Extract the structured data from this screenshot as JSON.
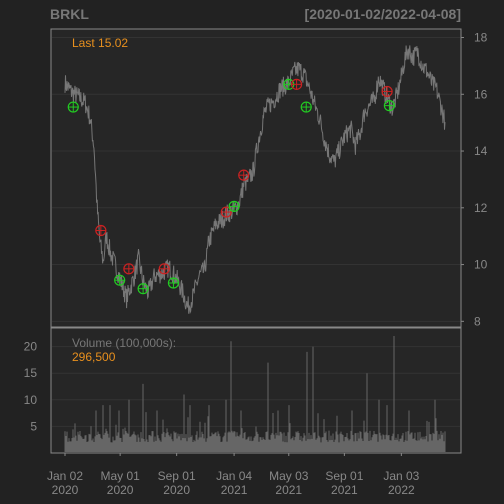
{
  "chart_data": {
    "type": "line",
    "title": "BRKL",
    "date_range": "[2020-01-02/2022-04-08]",
    "last_label": "Last 15.02",
    "volume_label": "Volume (100,000s):",
    "volume_value": "296,500",
    "price_axis": {
      "ticks": [
        "8",
        "10",
        "12",
        "14",
        "16",
        "18"
      ],
      "ylim": [
        7.8,
        18.3
      ]
    },
    "volume_axis": {
      "ticks": [
        "5",
        "10",
        "15",
        "20"
      ],
      "ylim": [
        0,
        23.5
      ]
    },
    "x_axis": {
      "dates": [
        "2020-01-02",
        "2022-04-08"
      ],
      "ticks": [
        {
          "date": "2020-01-02",
          "line1": "Jan 02",
          "line2": "2020"
        },
        {
          "date": "2020-05-01",
          "line1": "May 01",
          "line2": "2020"
        },
        {
          "date": "2020-09-01",
          "line1": "Sep 01",
          "line2": "2020"
        },
        {
          "date": "2021-01-04",
          "line1": "Jan 04",
          "line2": "2021"
        },
        {
          "date": "2021-05-03",
          "line1": "May 03",
          "line2": "2021"
        },
        {
          "date": "2021-09-01",
          "line1": "Sep 01",
          "line2": "2021"
        },
        {
          "date": "2022-01-03",
          "line1": "Jan 03",
          "line2": "2022"
        }
      ]
    },
    "price_series": {
      "name": "BRKL",
      "points": [
        [
          "2020-01-02",
          16.4
        ],
        [
          "2020-01-15",
          16.1
        ],
        [
          "2020-02-01",
          15.9
        ],
        [
          "2020-02-15",
          15.7
        ],
        [
          "2020-02-25",
          15.2
        ],
        [
          "2020-03-05",
          14.2
        ],
        [
          "2020-03-12",
          12.0
        ],
        [
          "2020-03-18",
          10.8
        ],
        [
          "2020-03-25",
          10.1
        ],
        [
          "2020-04-01",
          11.0
        ],
        [
          "2020-04-10",
          10.4
        ],
        [
          "2020-04-20",
          10.0
        ],
        [
          "2020-05-01",
          9.5
        ],
        [
          "2020-05-15",
          8.8
        ],
        [
          "2020-06-01",
          9.6
        ],
        [
          "2020-06-10",
          10.2
        ],
        [
          "2020-06-20",
          9.4
        ],
        [
          "2020-07-01",
          9.0
        ],
        [
          "2020-07-15",
          9.6
        ],
        [
          "2020-08-01",
          9.7
        ],
        [
          "2020-08-15",
          9.9
        ],
        [
          "2020-09-01",
          9.5
        ],
        [
          "2020-09-15",
          9.0
        ],
        [
          "2020-09-25",
          8.5
        ],
        [
          "2020-10-05",
          8.8
        ],
        [
          "2020-10-20",
          9.6
        ],
        [
          "2020-11-01",
          9.8
        ],
        [
          "2020-11-10",
          10.8
        ],
        [
          "2020-11-25",
          11.4
        ],
        [
          "2020-12-10",
          11.6
        ],
        [
          "2020-12-20",
          11.8
        ],
        [
          "2021-01-04",
          11.9
        ],
        [
          "2021-01-15",
          12.2
        ],
        [
          "2021-01-25",
          12.8
        ],
        [
          "2021-02-05",
          13.0
        ],
        [
          "2021-02-15",
          13.3
        ],
        [
          "2021-02-25",
          14.3
        ],
        [
          "2021-03-10",
          15.3
        ],
        [
          "2021-03-20",
          15.6
        ],
        [
          "2021-04-01",
          15.8
        ],
        [
          "2021-04-15",
          16.2
        ],
        [
          "2021-05-03",
          16.4
        ],
        [
          "2021-05-15",
          16.8
        ],
        [
          "2021-05-25",
          16.9
        ],
        [
          "2021-06-05",
          16.7
        ],
        [
          "2021-06-15",
          16.3
        ],
        [
          "2021-06-25",
          15.8
        ],
        [
          "2021-07-10",
          15.1
        ],
        [
          "2021-07-20",
          14.4
        ],
        [
          "2021-07-30",
          13.9
        ],
        [
          "2021-08-10",
          13.6
        ],
        [
          "2021-08-20",
          14.0
        ],
        [
          "2021-09-01",
          14.5
        ],
        [
          "2021-09-15",
          14.8
        ],
        [
          "2021-09-25",
          14.2
        ],
        [
          "2021-10-05",
          14.6
        ],
        [
          "2021-10-15",
          15.4
        ],
        [
          "2021-10-25",
          15.6
        ],
        [
          "2021-11-05",
          15.8
        ],
        [
          "2021-11-15",
          16.6
        ],
        [
          "2021-11-25",
          16.2
        ],
        [
          "2021-12-05",
          15.8
        ],
        [
          "2021-12-15",
          15.5
        ],
        [
          "2021-12-25",
          16.0
        ],
        [
          "2022-01-03",
          16.6
        ],
        [
          "2022-01-10",
          17.2
        ],
        [
          "2022-01-18",
          17.6
        ],
        [
          "2022-01-28",
          17.3
        ],
        [
          "2022-02-08",
          17.5
        ],
        [
          "2022-02-18",
          17.0
        ],
        [
          "2022-02-28",
          16.8
        ],
        [
          "2022-03-10",
          16.4
        ],
        [
          "2022-03-20",
          16.2
        ],
        [
          "2022-03-30",
          15.6
        ],
        [
          "2022-04-08",
          15.02
        ]
      ]
    },
    "markers": [
      {
        "date": "2020-01-20",
        "price": 15.55,
        "kind": "buy",
        "color": "#22cc22"
      },
      {
        "date": "2020-03-20",
        "price": 11.2,
        "kind": "sell",
        "color": "#cc2222"
      },
      {
        "date": "2020-04-30",
        "price": 9.45,
        "kind": "buy",
        "color": "#22cc22"
      },
      {
        "date": "2020-05-20",
        "price": 9.85,
        "kind": "sell",
        "color": "#cc2222"
      },
      {
        "date": "2020-06-20",
        "price": 9.15,
        "kind": "buy",
        "color": "#22cc22"
      },
      {
        "date": "2020-08-05",
        "price": 9.85,
        "kind": "sell",
        "color": "#cc2222"
      },
      {
        "date": "2020-08-25",
        "price": 9.35,
        "kind": "buy",
        "color": "#22cc22"
      },
      {
        "date": "2020-12-18",
        "price": 11.85,
        "kind": "sell",
        "color": "#cc2222"
      },
      {
        "date": "2021-01-04",
        "price": 12.05,
        "kind": "buy",
        "color": "#22cc22"
      },
      {
        "date": "2021-01-25",
        "price": 13.15,
        "kind": "sell",
        "color": "#cc2222"
      },
      {
        "date": "2021-05-03",
        "price": 16.35,
        "kind": "buy",
        "color": "#22cc22"
      },
      {
        "date": "2021-05-20",
        "price": 16.35,
        "kind": "sell",
        "color": "#cc2222"
      },
      {
        "date": "2021-06-10",
        "price": 15.55,
        "kind": "buy",
        "color": "#22cc22"
      },
      {
        "date": "2021-12-03",
        "price": 16.1,
        "kind": "sell",
        "color": "#cc2222"
      },
      {
        "date": "2021-12-08",
        "price": 15.6,
        "kind": "buy",
        "color": "#22cc22"
      }
    ],
    "volume_series": {
      "name": "Volume",
      "baseline": 2.0,
      "spikes": [
        [
          "2020-03-10",
          8
        ],
        [
          "2020-03-25",
          9
        ],
        [
          "2020-04-08",
          9
        ],
        [
          "2020-04-28",
          8
        ],
        [
          "2020-05-20",
          10
        ],
        [
          "2020-06-19",
          13
        ],
        [
          "2020-07-20",
          8
        ],
        [
          "2020-09-18",
          11
        ],
        [
          "2020-09-30",
          9
        ],
        [
          "2020-11-10",
          9
        ],
        [
          "2020-12-18",
          10
        ],
        [
          "2020-12-28",
          21
        ],
        [
          "2021-01-20",
          8
        ],
        [
          "2021-03-19",
          17
        ],
        [
          "2021-04-10",
          8
        ],
        [
          "2021-05-03",
          9
        ],
        [
          "2021-06-11",
          19
        ],
        [
          "2021-06-25",
          20
        ],
        [
          "2021-08-15",
          7
        ],
        [
          "2021-09-17",
          8
        ],
        [
          "2021-10-20",
          15
        ],
        [
          "2021-11-15",
          10
        ],
        [
          "2021-12-03",
          9
        ],
        [
          "2021-12-17",
          22
        ],
        [
          "2022-01-20",
          8
        ],
        [
          "2022-03-18",
          10
        ]
      ]
    },
    "colors": {
      "background": "#222222",
      "panel": "#262626",
      "frame": "#888888",
      "grid": "#333333",
      "price_line": "#777777",
      "volume_bar": "#666666",
      "accent": "#e8901e",
      "muted": "#777777"
    }
  }
}
